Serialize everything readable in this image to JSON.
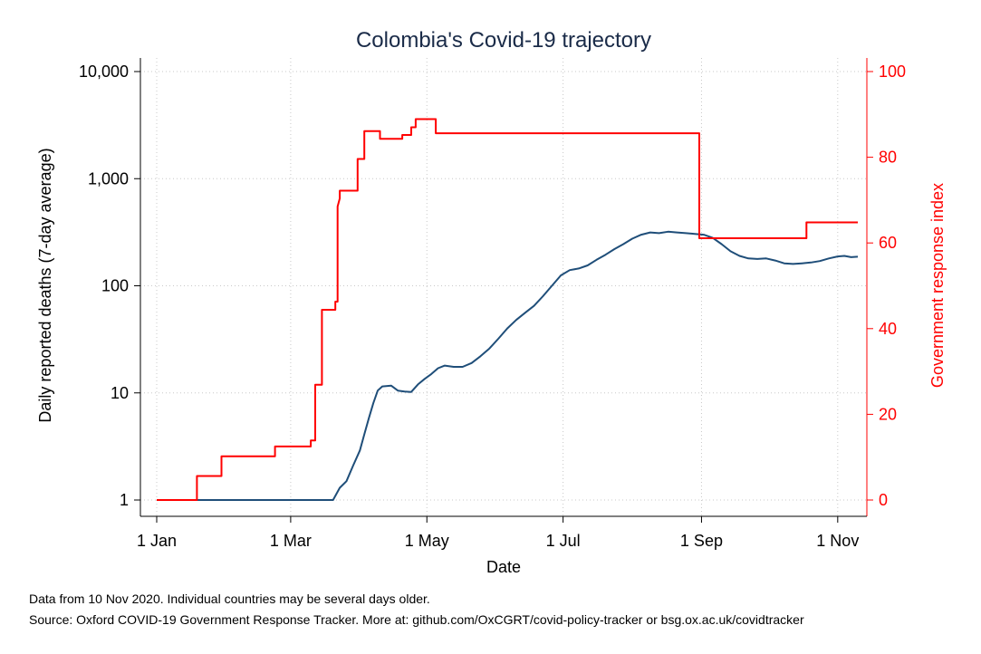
{
  "chart_data": {
    "type": "line",
    "title": "Colombia's Covid-19 trajectory",
    "xlabel": "Date",
    "ylabel_left": "Daily reported deaths (7-day average)",
    "ylabel_right": "Government response index",
    "x_ticks": [
      "1 Jan",
      "1 Mar",
      "1 May",
      "1 Jul",
      "1 Sep",
      "1 Nov"
    ],
    "x_range": [
      "2020-01-01",
      "2020-11-10"
    ],
    "y_left_scale": "log",
    "y_left_ticks": [
      "1",
      "10",
      "100",
      "1,000",
      "10,000"
    ],
    "y_left_range": [
      1,
      10000
    ],
    "y_right_ticks": [
      "0",
      "20",
      "40",
      "60",
      "80",
      "100"
    ],
    "y_right_range": [
      0,
      100
    ],
    "grid": true,
    "colors": {
      "deaths": "#1f4e79",
      "response": "#ff0000",
      "title": "#1a2b48"
    },
    "series": [
      {
        "axis": "left",
        "color": "#1f4e79",
        "points": [
          [
            "2020-01-01",
            1
          ],
          [
            "2020-03-20",
            1
          ],
          [
            "2020-03-23",
            1.3
          ],
          [
            "2020-03-26",
            1.5
          ],
          [
            "2020-03-29",
            2.1
          ],
          [
            "2020-04-01",
            2.9
          ],
          [
            "2020-04-03",
            4.1
          ],
          [
            "2020-04-05",
            5.8
          ],
          [
            "2020-04-07",
            8
          ],
          [
            "2020-04-09",
            10.5
          ],
          [
            "2020-04-11",
            11.5
          ],
          [
            "2020-04-15",
            11.7
          ],
          [
            "2020-04-18",
            10.5
          ],
          [
            "2020-04-21",
            10.3
          ],
          [
            "2020-04-24",
            10.2
          ],
          [
            "2020-04-27",
            12
          ],
          [
            "2020-04-30",
            13.5
          ],
          [
            "2020-05-03",
            15
          ],
          [
            "2020-05-06",
            17
          ],
          [
            "2020-05-09",
            18
          ],
          [
            "2020-05-13",
            17.5
          ],
          [
            "2020-05-17",
            17.5
          ],
          [
            "2020-05-21",
            19
          ],
          [
            "2020-05-25",
            22
          ],
          [
            "2020-05-29",
            26
          ],
          [
            "2020-06-02",
            32
          ],
          [
            "2020-06-06",
            40
          ],
          [
            "2020-06-10",
            48
          ],
          [
            "2020-06-14",
            56
          ],
          [
            "2020-06-18",
            65
          ],
          [
            "2020-06-22",
            80
          ],
          [
            "2020-06-26",
            100
          ],
          [
            "2020-06-30",
            125
          ],
          [
            "2020-07-04",
            140
          ],
          [
            "2020-07-08",
            145
          ],
          [
            "2020-07-12",
            155
          ],
          [
            "2020-07-16",
            175
          ],
          [
            "2020-07-20",
            195
          ],
          [
            "2020-07-24",
            220
          ],
          [
            "2020-07-28",
            245
          ],
          [
            "2020-08-01",
            275
          ],
          [
            "2020-08-05",
            300
          ],
          [
            "2020-08-09",
            315
          ],
          [
            "2020-08-13",
            310
          ],
          [
            "2020-08-17",
            320
          ],
          [
            "2020-08-21",
            315
          ],
          [
            "2020-08-25",
            310
          ],
          [
            "2020-08-29",
            305
          ],
          [
            "2020-09-02",
            300
          ],
          [
            "2020-09-06",
            280
          ],
          [
            "2020-09-10",
            245
          ],
          [
            "2020-09-14",
            210
          ],
          [
            "2020-09-18",
            190
          ],
          [
            "2020-09-22",
            180
          ],
          [
            "2020-09-26",
            178
          ],
          [
            "2020-09-30",
            180
          ],
          [
            "2020-10-04",
            172
          ],
          [
            "2020-10-08",
            162
          ],
          [
            "2020-10-12",
            160
          ],
          [
            "2020-10-16",
            162
          ],
          [
            "2020-10-20",
            165
          ],
          [
            "2020-10-24",
            170
          ],
          [
            "2020-10-28",
            180
          ],
          [
            "2020-11-01",
            188
          ],
          [
            "2020-11-04",
            190
          ],
          [
            "2020-11-07",
            185
          ],
          [
            "2020-11-10",
            187
          ]
        ]
      },
      {
        "axis": "right",
        "color": "#ff0000",
        "points": [
          [
            "2020-01-01",
            0
          ],
          [
            "2020-01-19",
            0
          ],
          [
            "2020-01-19",
            5.6
          ],
          [
            "2020-01-30",
            5.6
          ],
          [
            "2020-01-30",
            10.2
          ],
          [
            "2020-02-23",
            10.2
          ],
          [
            "2020-02-23",
            12.5
          ],
          [
            "2020-03-10",
            12.5
          ],
          [
            "2020-03-10",
            13.9
          ],
          [
            "2020-03-12",
            13.9
          ],
          [
            "2020-03-12",
            26.9
          ],
          [
            "2020-03-15",
            26.9
          ],
          [
            "2020-03-15",
            44.4
          ],
          [
            "2020-03-21",
            44.4
          ],
          [
            "2020-03-21",
            46.3
          ],
          [
            "2020-03-22",
            46.3
          ],
          [
            "2020-03-22",
            68.5
          ],
          [
            "2020-03-23",
            70.4
          ],
          [
            "2020-03-23",
            72.2
          ],
          [
            "2020-03-31",
            72.2
          ],
          [
            "2020-03-31",
            79.6
          ],
          [
            "2020-04-03",
            79.6
          ],
          [
            "2020-04-03",
            86.1
          ],
          [
            "2020-04-10",
            86.1
          ],
          [
            "2020-04-10",
            84.3
          ],
          [
            "2020-04-20",
            84.3
          ],
          [
            "2020-04-20",
            85.2
          ],
          [
            "2020-04-24",
            85.2
          ],
          [
            "2020-04-24",
            87.0
          ],
          [
            "2020-04-26",
            87.0
          ],
          [
            "2020-04-26",
            88.9
          ],
          [
            "2020-05-05",
            88.9
          ],
          [
            "2020-05-05",
            85.6
          ],
          [
            "2020-08-31",
            85.6
          ],
          [
            "2020-08-31",
            61.1
          ],
          [
            "2020-10-18",
            61.1
          ],
          [
            "2020-10-18",
            64.8
          ],
          [
            "2020-11-10",
            64.8
          ]
        ]
      }
    ]
  },
  "footnotes": [
    "Data from 10 Nov 2020. Individual countries may be several days older.",
    "Source: Oxford COVID-19 Government Response Tracker. More at: github.com/OxCGRT/covid-policy-tracker or bsg.ox.ac.uk/covidtracker"
  ]
}
